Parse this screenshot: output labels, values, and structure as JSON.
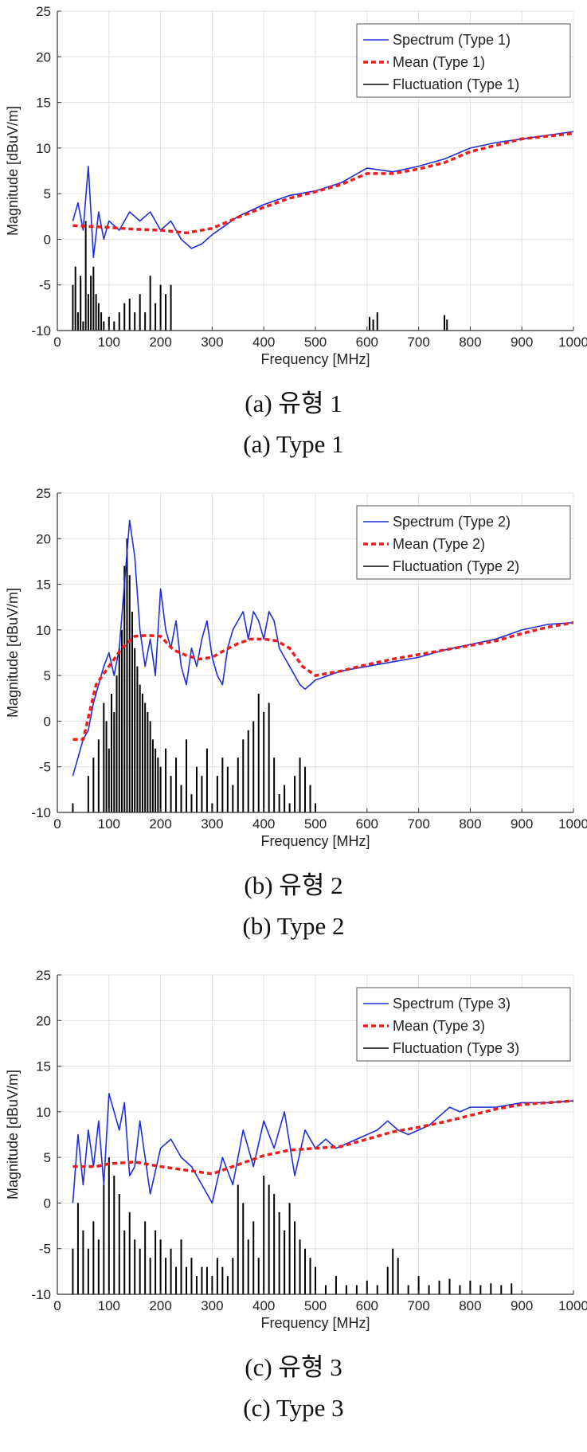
{
  "panels": [
    {
      "caption_kr": "(a) 유형 1",
      "caption_en": "(a) Type 1"
    },
    {
      "caption_kr": "(b) 유형 2",
      "caption_en": "(b) Type 2"
    },
    {
      "caption_kr": "(c) 유형 3",
      "caption_en": "(c) Type 3"
    }
  ],
  "colors": {
    "spectrum": "#1f2fd6",
    "mean": "#ee1c1c",
    "fluctuation": "#000000",
    "grid": "#e0e0e0",
    "axis": "#333333"
  },
  "chart_data": [
    {
      "type": "line",
      "xlabel": "Frequency [MHz]",
      "ylabel": "Magnitude [dBuV/m]",
      "xlim": [
        0,
        1000
      ],
      "ylim": [
        -10,
        25
      ],
      "xticks": [
        0,
        100,
        200,
        300,
        400,
        500,
        600,
        700,
        800,
        900,
        1000
      ],
      "yticks": [
        -10,
        -5,
        0,
        5,
        10,
        15,
        20,
        25
      ],
      "grid": true,
      "legend_position": "top-right",
      "series": [
        {
          "name": "Spectrum (Type 1)",
          "style": "solid",
          "x": [
            30,
            40,
            50,
            60,
            70,
            80,
            90,
            100,
            120,
            140,
            160,
            180,
            200,
            220,
            240,
            260,
            280,
            300,
            350,
            400,
            450,
            500,
            550,
            600,
            650,
            700,
            750,
            800,
            850,
            900,
            950,
            1000
          ],
          "y": [
            2,
            4,
            1,
            8,
            -2,
            3,
            0,
            2,
            1,
            3,
            2,
            3,
            1,
            2,
            0,
            -1,
            -0.5,
            0.5,
            2.5,
            3.8,
            4.8,
            5.3,
            6.2,
            7.8,
            7.4,
            8,
            8.8,
            10,
            10.6,
            11,
            11.4,
            11.8
          ]
        },
        {
          "name": "Mean (Type 1)",
          "style": "dashed",
          "x": [
            30,
            100,
            150,
            200,
            250,
            300,
            350,
            400,
            450,
            500,
            550,
            600,
            650,
            700,
            750,
            800,
            850,
            900,
            950,
            1000
          ],
          "y": [
            1.5,
            1.3,
            1.1,
            1,
            0.7,
            1.2,
            2.4,
            3.5,
            4.5,
            5.2,
            6,
            7.2,
            7.2,
            7.7,
            8.4,
            9.6,
            10.3,
            11,
            11.3,
            11.6
          ]
        },
        {
          "name": "Fluctuation (Type 1)",
          "style": "bars",
          "x": [
            30,
            35,
            40,
            45,
            50,
            55,
            60,
            65,
            70,
            75,
            80,
            85,
            90,
            100,
            110,
            120,
            130,
            140,
            150,
            160,
            170,
            180,
            190,
            200,
            210,
            220,
            605,
            612,
            620,
            750,
            755
          ],
          "y": [
            -5,
            -3,
            -8,
            -4,
            -9,
            2,
            -6,
            -4,
            -3,
            -6,
            -7,
            -8,
            -9,
            -8.5,
            -9,
            -8,
            -7,
            -6.5,
            -8,
            -6,
            -8,
            -4,
            -7,
            -5,
            -6,
            -5,
            -8.5,
            -8.8,
            -8,
            -8.3,
            -8.8
          ]
        }
      ]
    },
    {
      "type": "line",
      "xlabel": "Frequency [MHz]",
      "ylabel": "Magnitude [dBuV/m]",
      "xlim": [
        0,
        1000
      ],
      "ylim": [
        -10,
        25
      ],
      "xticks": [
        0,
        100,
        200,
        300,
        400,
        500,
        600,
        700,
        800,
        900,
        1000
      ],
      "yticks": [
        -10,
        -5,
        0,
        5,
        10,
        15,
        20,
        25
      ],
      "grid": true,
      "legend_position": "top-right",
      "series": [
        {
          "name": "Spectrum (Type 2)",
          "style": "solid",
          "x": [
            30,
            40,
            50,
            60,
            70,
            80,
            90,
            100,
            110,
            120,
            130,
            140,
            150,
            160,
            170,
            180,
            190,
            200,
            210,
            220,
            230,
            240,
            250,
            260,
            270,
            280,
            290,
            300,
            310,
            320,
            330,
            340,
            350,
            360,
            370,
            380,
            390,
            400,
            410,
            420,
            430,
            440,
            450,
            460,
            470,
            480,
            490,
            500,
            550,
            600,
            650,
            700,
            750,
            800,
            850,
            900,
            950,
            1000
          ],
          "y": [
            -6,
            -4,
            -2,
            -1,
            2,
            4,
            6,
            7.5,
            5,
            8,
            15,
            22,
            18,
            10,
            6,
            9,
            5,
            14.5,
            10,
            8,
            11,
            6,
            4,
            8,
            6,
            9,
            11,
            7,
            5,
            4,
            8,
            10,
            11,
            12,
            9,
            12,
            11,
            9,
            12,
            11,
            8,
            7,
            6,
            5,
            4,
            3.5,
            4,
            4.5,
            5.5,
            6,
            6.5,
            7,
            7.8,
            8.4,
            9,
            10,
            10.6,
            10.8
          ]
        },
        {
          "name": "Mean (Type 2)",
          "style": "dashed",
          "x": [
            30,
            50,
            75,
            100,
            125,
            150,
            175,
            200,
            225,
            250,
            275,
            300,
            325,
            350,
            375,
            400,
            425,
            450,
            475,
            500,
            550,
            600,
            650,
            700,
            750,
            800,
            850,
            900,
            950,
            1000
          ],
          "y": [
            -2,
            -2,
            4,
            6,
            8,
            9.3,
            9.4,
            9.3,
            7.8,
            7.2,
            6.8,
            7,
            7.8,
            8.5,
            9,
            9,
            8.8,
            8,
            6,
            5,
            5.5,
            6.2,
            6.8,
            7.3,
            7.8,
            8.3,
            8.8,
            9.6,
            10.3,
            10.8
          ]
        },
        {
          "name": "Fluctuation (Type 2)",
          "style": "bars",
          "x": [
            30,
            60,
            70,
            80,
            90,
            95,
            100,
            105,
            110,
            115,
            120,
            125,
            130,
            135,
            140,
            145,
            150,
            155,
            160,
            165,
            170,
            175,
            180,
            185,
            190,
            195,
            200,
            210,
            220,
            230,
            240,
            250,
            260,
            270,
            280,
            290,
            300,
            310,
            320,
            330,
            340,
            350,
            360,
            370,
            380,
            390,
            400,
            410,
            420,
            430,
            440,
            450,
            460,
            470,
            480,
            490,
            500
          ],
          "y": [
            -9,
            -6,
            -4,
            -2,
            2,
            0,
            -3,
            3,
            1,
            5,
            8,
            10,
            17,
            20,
            16,
            12,
            8,
            6,
            4,
            3,
            2,
            1,
            0,
            -2,
            -3,
            -4,
            -5,
            -3,
            -6,
            -4,
            -7,
            -2,
            -8,
            -5,
            -6,
            -3,
            -9,
            -6,
            -4,
            -5,
            -7,
            -4,
            -2,
            -1,
            0,
            3,
            1,
            2,
            -4,
            -8,
            -7,
            -9,
            -6,
            -4,
            -5,
            -7,
            -9
          ]
        }
      ]
    },
    {
      "type": "line",
      "xlabel": "Frequency [MHz]",
      "ylabel": "Magnitude [dBuV/m]",
      "xlim": [
        0,
        1000
      ],
      "ylim": [
        -10,
        25
      ],
      "xticks": [
        0,
        100,
        200,
        300,
        400,
        500,
        600,
        700,
        800,
        900,
        1000
      ],
      "yticks": [
        -10,
        -5,
        0,
        5,
        10,
        15,
        20,
        25
      ],
      "grid": true,
      "legend_position": "top-right",
      "series": [
        {
          "name": "Spectrum (Type 3)",
          "style": "solid",
          "x": [
            30,
            40,
            50,
            60,
            70,
            80,
            90,
            100,
            110,
            120,
            130,
            140,
            150,
            160,
            180,
            200,
            220,
            240,
            260,
            280,
            300,
            320,
            340,
            360,
            380,
            400,
            420,
            440,
            460,
            480,
            500,
            520,
            540,
            560,
            580,
            600,
            620,
            640,
            660,
            680,
            700,
            720,
            740,
            760,
            780,
            800,
            850,
            900,
            950,
            1000
          ],
          "y": [
            0,
            7.5,
            2,
            8,
            4,
            9,
            2,
            12,
            10,
            8,
            11,
            3,
            4,
            9,
            1,
            6,
            7,
            5,
            4,
            2,
            0,
            5,
            2,
            8,
            4,
            9,
            6,
            10,
            3,
            8,
            6,
            7,
            6,
            6.5,
            7,
            7.5,
            8,
            9,
            8,
            7.5,
            8,
            8.5,
            9.5,
            10.5,
            10,
            10.5,
            10.5,
            11,
            11,
            11.2
          ]
        },
        {
          "name": "Mean (Type 3)",
          "style": "dashed",
          "x": [
            30,
            75,
            100,
            150,
            200,
            250,
            300,
            350,
            400,
            450,
            500,
            550,
            600,
            650,
            700,
            750,
            800,
            850,
            900,
            950,
            1000
          ],
          "y": [
            4,
            4,
            4.3,
            4.5,
            4,
            3.6,
            3.2,
            4.2,
            5.2,
            5.8,
            6,
            6.2,
            7,
            7.8,
            8.3,
            8.9,
            9.6,
            10.3,
            10.8,
            11,
            11.2
          ]
        },
        {
          "name": "Fluctuation (Type 3)",
          "style": "bars",
          "x": [
            30,
            40,
            50,
            60,
            70,
            80,
            90,
            100,
            110,
            120,
            130,
            140,
            150,
            160,
            170,
            180,
            190,
            200,
            210,
            220,
            230,
            240,
            250,
            260,
            270,
            280,
            290,
            300,
            310,
            320,
            330,
            340,
            350,
            360,
            370,
            380,
            390,
            400,
            410,
            420,
            430,
            440,
            450,
            460,
            470,
            480,
            490,
            500,
            520,
            540,
            560,
            580,
            600,
            620,
            640,
            650,
            660,
            680,
            700,
            720,
            740,
            760,
            780,
            800,
            820,
            840,
            860,
            880
          ],
          "y": [
            -5,
            0,
            -3,
            -5,
            -2,
            -4,
            2,
            5,
            3,
            1,
            -3,
            -1,
            -4,
            -5,
            -2,
            -6,
            -3,
            -4,
            -6,
            -5,
            -7,
            -4,
            -7,
            -6,
            -8,
            -7,
            -7,
            -8,
            -6,
            -7,
            -8,
            -6,
            2,
            0,
            -4,
            -2,
            -6,
            3,
            2,
            1,
            -1,
            -3,
            0,
            -2,
            -4,
            -5,
            -6,
            -7,
            -9,
            -8,
            -9,
            -9,
            -8.5,
            -9,
            -7,
            -5,
            -6,
            -9,
            -8,
            -9,
            -8.5,
            -8.3,
            -9,
            -8.5,
            -9,
            -8.8,
            -9,
            -8.8
          ]
        }
      ]
    }
  ]
}
